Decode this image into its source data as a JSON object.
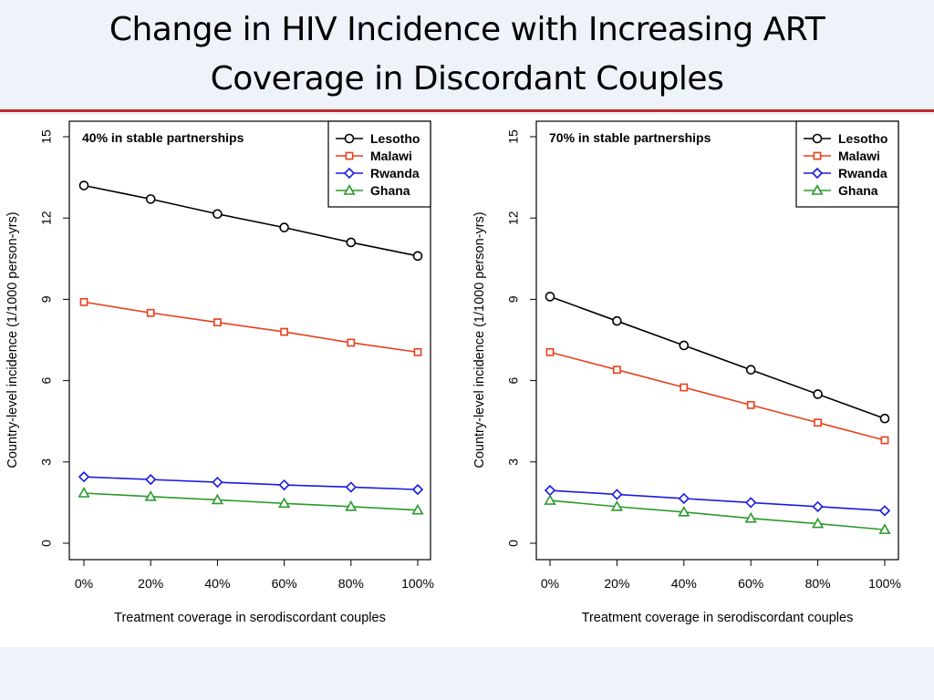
{
  "slide": {
    "title_line1": "Change in HIV Incidence with Increasing ART",
    "title_line2": "Coverage in Discordant Couples",
    "rule_color": "#c0272d"
  },
  "chart_data": [
    {
      "type": "line",
      "annotation": "40% in stable partnerships",
      "xlabel": "Treatment coverage in serodiscordant couples",
      "ylabel": "Country-level incidence (1/1000 person-yrs)",
      "x": [
        "0%",
        "20%",
        "40%",
        "60%",
        "80%",
        "100%"
      ],
      "ylim": [
        0,
        15
      ],
      "yticks": [
        "0",
        "3",
        "6",
        "9",
        "12",
        "15"
      ],
      "grid": false,
      "legend": "top-right",
      "series": [
        {
          "name": "Lesotho",
          "color": "#000000",
          "marker": "circle",
          "values": [
            13.2,
            12.7,
            12.15,
            11.65,
            11.1,
            10.6
          ]
        },
        {
          "name": "Malawi",
          "color": "#e8401c",
          "marker": "square",
          "values": [
            8.9,
            8.5,
            8.15,
            7.8,
            7.4,
            7.05
          ]
        },
        {
          "name": "Rwanda",
          "color": "#1a1ae0",
          "marker": "diamond",
          "values": [
            2.45,
            2.35,
            2.25,
            2.15,
            2.07,
            1.98
          ]
        },
        {
          "name": "Ghana",
          "color": "#2a9a2a",
          "marker": "triangle",
          "values": [
            1.85,
            1.72,
            1.6,
            1.47,
            1.35,
            1.22
          ]
        }
      ]
    },
    {
      "type": "line",
      "annotation": "70% in stable partnerships",
      "xlabel": "Treatment coverage in serodiscordant couples",
      "ylabel": "Country-level incidence (1/1000 person-yrs)",
      "x": [
        "0%",
        "20%",
        "40%",
        "60%",
        "80%",
        "100%"
      ],
      "ylim": [
        0,
        15
      ],
      "yticks": [
        "0",
        "3",
        "6",
        "9",
        "12",
        "15"
      ],
      "grid": false,
      "legend": "top-right",
      "series": [
        {
          "name": "Lesotho",
          "color": "#000000",
          "marker": "circle",
          "values": [
            9.1,
            8.2,
            7.3,
            6.4,
            5.5,
            4.6
          ]
        },
        {
          "name": "Malawi",
          "color": "#e8401c",
          "marker": "square",
          "values": [
            7.05,
            6.4,
            5.75,
            5.1,
            4.45,
            3.8
          ]
        },
        {
          "name": "Rwanda",
          "color": "#1a1ae0",
          "marker": "diamond",
          "values": [
            1.95,
            1.8,
            1.65,
            1.5,
            1.35,
            1.2
          ]
        },
        {
          "name": "Ghana",
          "color": "#2a9a2a",
          "marker": "triangle",
          "values": [
            1.58,
            1.35,
            1.15,
            0.92,
            0.72,
            0.5
          ]
        }
      ]
    }
  ]
}
